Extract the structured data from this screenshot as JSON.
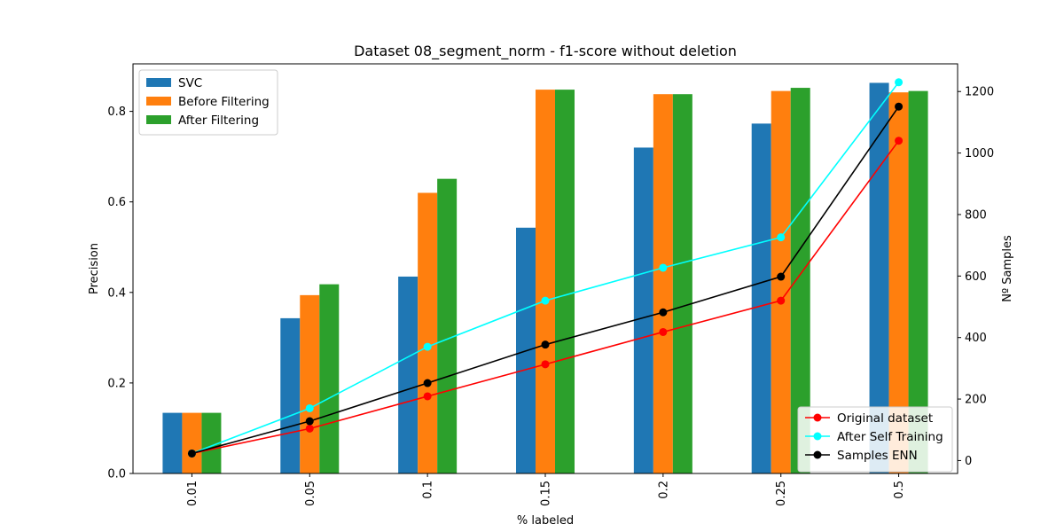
{
  "chart_data": {
    "type": "bar",
    "title": "Dataset 08_segment_norm - f1-score without deletion",
    "xlabel": "% labeled",
    "ylabel": "Precision",
    "y2label": "Nº Samples",
    "categories": [
      "0.01",
      "0.05",
      "0.1",
      "0.15",
      "0.2",
      "0.25",
      "0.5"
    ],
    "ylim": [
      0,
      0.905
    ],
    "y2lim": [
      -42,
      1290
    ],
    "yticks": [
      0.0,
      0.2,
      0.4,
      0.6,
      0.8
    ],
    "ytick_labels": [
      "0.0",
      "0.2",
      "0.4",
      "0.6",
      "0.8"
    ],
    "y2ticks": [
      0,
      200,
      400,
      600,
      800,
      1000,
      1200
    ],
    "y2tick_labels": [
      "0",
      "200",
      "400",
      "600",
      "800",
      "1000",
      "1200"
    ],
    "grid": false,
    "bar_series": [
      {
        "name": "SVC",
        "color": "#1f77b4",
        "values": [
          0.134,
          0.343,
          0.435,
          0.543,
          0.72,
          0.773,
          0.863
        ]
      },
      {
        "name": "Before Filtering",
        "color": "#ff7f0e",
        "values": [
          0.134,
          0.394,
          0.62,
          0.848,
          0.838,
          0.845,
          0.842
        ]
      },
      {
        "name": "After Filtering",
        "color": "#2ca02c",
        "values": [
          0.134,
          0.418,
          0.651,
          0.848,
          0.838,
          0.852,
          0.845
        ]
      }
    ],
    "line_series": [
      {
        "name": "Original dataset",
        "color": "#ff0000",
        "axis": "right",
        "values": [
          23,
          104,
          209,
          313,
          418,
          520,
          1040
        ]
      },
      {
        "name": "After Self Training",
        "color": "#00ffff",
        "axis": "right",
        "values": [
          23,
          170,
          370,
          520,
          627,
          726,
          1230
        ]
      },
      {
        "name": "Samples ENN",
        "color": "#000000",
        "axis": "right",
        "values": [
          23,
          128,
          252,
          377,
          482,
          598,
          1151
        ]
      }
    ],
    "legend_bars_placement": "top-left",
    "legend_lines_placement": "bottom-right"
  }
}
